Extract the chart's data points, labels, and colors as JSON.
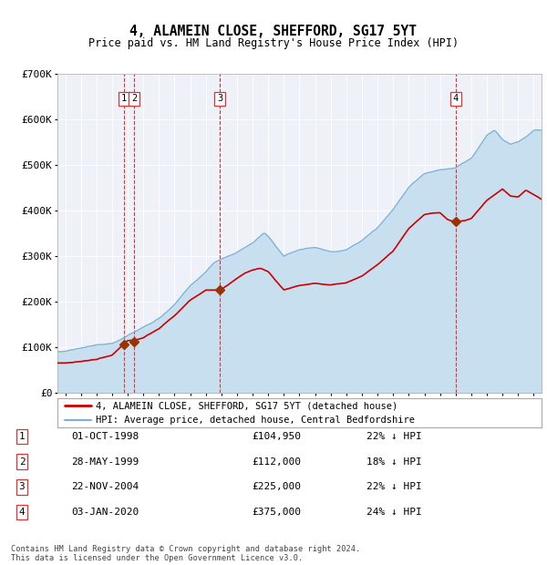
{
  "title": "4, ALAMEIN CLOSE, SHEFFORD, SG17 5YT",
  "subtitle": "Price paid vs. HM Land Registry's House Price Index (HPI)",
  "legend_label_red": "4, ALAMEIN CLOSE, SHEFFORD, SG17 5YT (detached house)",
  "legend_label_blue": "HPI: Average price, detached house, Central Bedfordshire",
  "footer1": "Contains HM Land Registry data © Crown copyright and database right 2024.",
  "footer2": "This data is licensed under the Open Government Licence v3.0.",
  "transactions": [
    {
      "num": 1,
      "date": "01-OCT-1998",
      "price": 104950,
      "pct": "22%",
      "dir": "↓",
      "year": 1998.75
    },
    {
      "num": 2,
      "date": "28-MAY-1999",
      "price": 112000,
      "pct": "18%",
      "dir": "↓",
      "year": 1999.41
    },
    {
      "num": 3,
      "date": "22-NOV-2004",
      "price": 225000,
      "pct": "22%",
      "dir": "↓",
      "year": 2004.89
    },
    {
      "num": 4,
      "date": "03-JAN-2020",
      "price": 375000,
      "pct": "24%",
      "dir": "↓",
      "year": 2020.01
    }
  ],
  "color_red": "#cc0000",
  "color_blue": "#7ab0d4",
  "color_blue_light": "#c8dff0",
  "color_dashed": "#dd3333",
  "background_chart": "#eef2f8",
  "ylim": [
    0,
    700000
  ],
  "xlim_start": 1994.5,
  "xlim_end": 2025.5,
  "yticks": [
    0,
    100000,
    200000,
    300000,
    400000,
    500000,
    600000,
    700000
  ],
  "ylabels": [
    "£0",
    "£100K",
    "£200K",
    "£300K",
    "£400K",
    "£500K",
    "£600K",
    "£700K"
  ]
}
